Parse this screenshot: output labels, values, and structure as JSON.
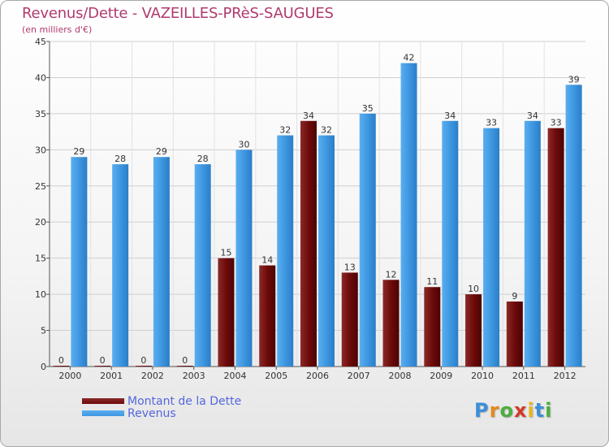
{
  "title": "Revenus/Dette - VAZEILLES-PRèS-SAUGUES",
  "subtitle": "(en milliers d'€)",
  "brand": {
    "letters": [
      "P",
      "r",
      "o",
      "x",
      "i",
      "t",
      "i"
    ],
    "colors": [
      "#3b8fd8",
      "#e8891c",
      "#4cae3e",
      "#d23a2a",
      "#e8b81c",
      "#3b8fd8",
      "#4cae3e"
    ]
  },
  "chart_data": {
    "type": "bar",
    "categories": [
      "2000",
      "2001",
      "2002",
      "2003",
      "2004",
      "2005",
      "2006",
      "2007",
      "2008",
      "2009",
      "2010",
      "2011",
      "2012"
    ],
    "series": [
      {
        "name": "Montant de la Dette",
        "values": [
          0,
          0,
          0,
          0,
          15,
          14,
          34,
          13,
          12,
          11,
          10,
          9,
          33
        ],
        "color": "#6e0a0a"
      },
      {
        "name": "Revenus",
        "values": [
          29,
          28,
          29,
          28,
          30,
          32,
          32,
          35,
          42,
          34,
          33,
          34,
          39
        ],
        "color": "#3e97e0"
      }
    ],
    "ylim": [
      0,
      45
    ],
    "yticks": [
      0,
      5,
      10,
      15,
      20,
      25,
      30,
      35,
      40,
      45
    ],
    "grid": true,
    "legend": "bottom-left",
    "xlabel": "",
    "ylabel": ""
  }
}
